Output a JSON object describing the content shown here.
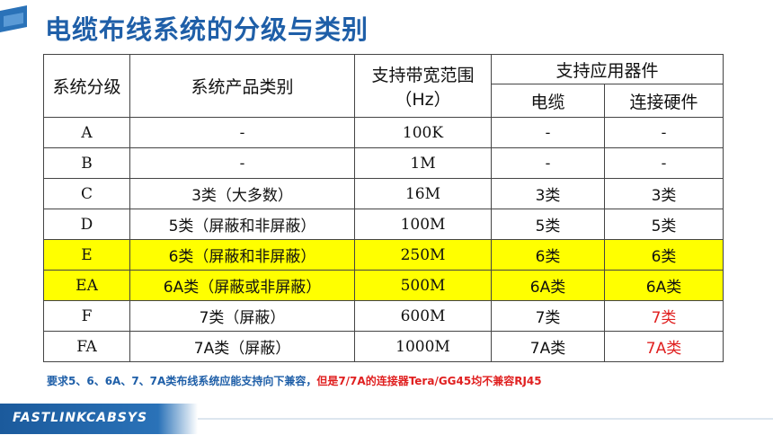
{
  "title": "电缆布线系统的分级与类别",
  "table": {
    "head": {
      "level": "系统分级",
      "category": "系统产品类别",
      "bandwidth": "支持带宽范围（Hz）",
      "devices": "支持应用器件",
      "cable": "电缆",
      "connector": "连接硬件"
    },
    "rows": [
      {
        "level": "A",
        "category": "-",
        "bandwidth": "100K",
        "cable": "-",
        "connector": "-"
      },
      {
        "level": "B",
        "category": "-",
        "bandwidth": "1M",
        "cable": "-",
        "connector": "-"
      },
      {
        "level": "C",
        "category": "3类（大多数）",
        "bandwidth": "16M",
        "cable": "3类",
        "connector": "3类"
      },
      {
        "level": "D",
        "category": "5类（屏蔽和非屏蔽）",
        "bandwidth": "100M",
        "cable": "5类",
        "connector": "5类"
      },
      {
        "level": "E",
        "category": "6类（屏蔽和非屏蔽）",
        "bandwidth": "250M",
        "cable": "6类",
        "connector": "6类"
      },
      {
        "level": "EA",
        "category": "6A类（屏蔽或非屏蔽）",
        "bandwidth": "500M",
        "cable": "6A类",
        "connector": "6A类"
      },
      {
        "level": "F",
        "category": "7类（屏蔽）",
        "bandwidth": "600M",
        "cable": "7类",
        "connector": "7类"
      },
      {
        "level": "FA",
        "category": "7A类（屏蔽）",
        "bandwidth": "1000M",
        "cable": "7A类",
        "connector": "7A类"
      }
    ]
  },
  "note": {
    "part1": "要求5、6、6A、7、7A类布线系统应能支持向下兼容，",
    "part2": "但是7/7A的连接器Tera/GG45均不兼容RJ45"
  },
  "brand": "FASTLINKCABSYS",
  "colors": {
    "accent": "#1f5fa8",
    "highlight": "#ffff00",
    "warning": "#e02020"
  }
}
